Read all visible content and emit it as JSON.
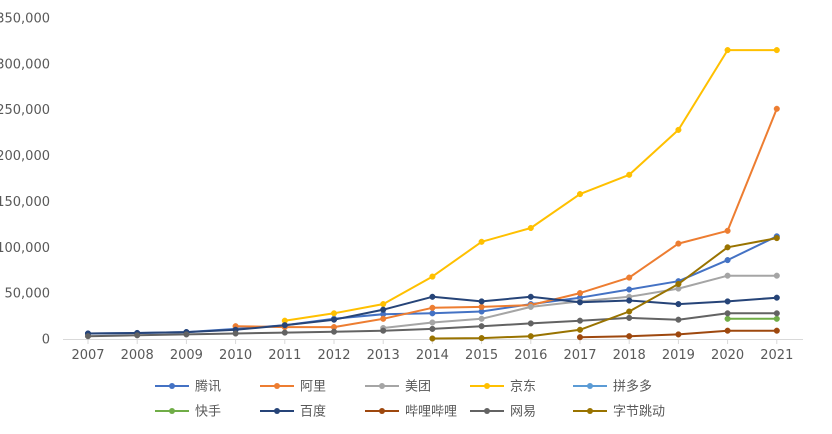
{
  "chart_data": {
    "type": "line",
    "x": [
      2007,
      2008,
      2009,
      2010,
      2011,
      2012,
      2013,
      2014,
      2015,
      2016,
      2017,
      2018,
      2019,
      2020,
      2021
    ],
    "ylim": [
      0,
      350000
    ],
    "yticks": [
      0,
      50000,
      100000,
      150000,
      200000,
      250000,
      300000,
      350000
    ],
    "ytick_labels": [
      "0",
      "50,000",
      "100,000",
      "150,000",
      "200,000",
      "250,000",
      "300,000",
      "350,000"
    ],
    "xtick_labels": [
      "2007",
      "2008",
      "2009",
      "2010",
      "2011",
      "2012",
      "2013",
      "2014",
      "2015",
      "2016",
      "2017",
      "2018",
      "2019",
      "2020",
      "2021"
    ],
    "grid": false,
    "legend_position": "bottom",
    "series": [
      {
        "name": "腾讯",
        "color": "#4472C4",
        "values": [
          6000,
          6500,
          7500,
          11000,
          15000,
          22000,
          27000,
          28000,
          30000,
          38000,
          45000,
          54000,
          63000,
          86000,
          112000
        ]
      },
      {
        "name": "阿里",
        "color": "#ED7D31",
        "values": [
          null,
          null,
          null,
          14000,
          13000,
          13000,
          22000,
          34000,
          35000,
          37000,
          50000,
          67000,
          104000,
          118000,
          251000
        ]
      },
      {
        "name": "美团",
        "color": "#A5A5A5",
        "values": [
          null,
          null,
          null,
          null,
          null,
          null,
          12000,
          18000,
          22000,
          35000,
          41000,
          46000,
          55000,
          69000,
          69000
        ]
      },
      {
        "name": "京东",
        "color": "#FFC000",
        "values": [
          null,
          null,
          null,
          null,
          20000,
          28000,
          38000,
          68000,
          106000,
          121000,
          158000,
          179000,
          228000,
          315000,
          315000
        ]
      },
      {
        "name": "拼多多",
        "color": "#5B9BD5",
        "values": [
          null,
          null,
          null,
          null,
          null,
          null,
          null,
          null,
          null,
          null,
          null,
          null,
          null,
          null,
          null
        ]
      },
      {
        "name": "快手",
        "color": "#70AD47",
        "values": [
          null,
          null,
          null,
          null,
          null,
          null,
          null,
          null,
          null,
          null,
          null,
          null,
          null,
          22000,
          22000
        ]
      },
      {
        "name": "百度",
        "color": "#264478",
        "values": [
          6000,
          6500,
          7500,
          10000,
          15000,
          21000,
          32000,
          46000,
          41000,
          46000,
          40000,
          42000,
          38000,
          41000,
          45000
        ]
      },
      {
        "name": "哔哩哔哩",
        "color": "#9E480E",
        "values": [
          null,
          null,
          null,
          null,
          null,
          null,
          null,
          null,
          null,
          null,
          2000,
          3000,
          5000,
          9000,
          9000
        ]
      },
      {
        "name": "网易",
        "color": "#636363",
        "values": [
          3000,
          4000,
          5000,
          6000,
          7000,
          8000,
          9000,
          11000,
          14000,
          17000,
          20000,
          23000,
          21000,
          28000,
          28000
        ]
      },
      {
        "name": "字节跳动",
        "color": "#997300",
        "values": [
          null,
          null,
          null,
          null,
          null,
          null,
          null,
          500,
          1000,
          3000,
          10000,
          30000,
          60000,
          100000,
          110000
        ]
      }
    ]
  }
}
